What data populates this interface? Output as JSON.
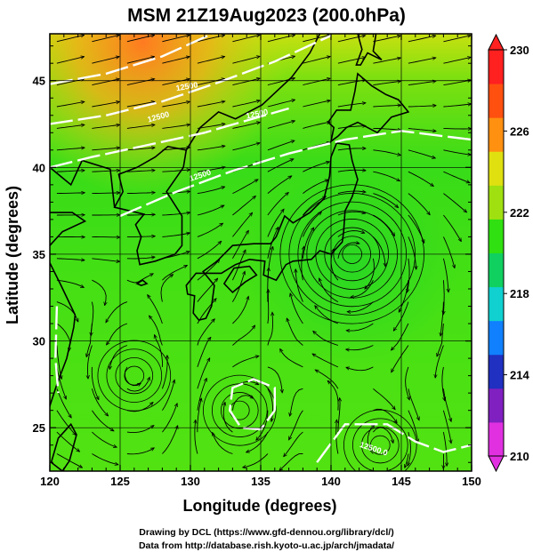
{
  "title": "MSM 21Z19Aug2023 (200.0hPa)",
  "xlabel": "Longitude (degrees)",
  "ylabel": "Latitude  (degrees)",
  "x_ticks": [
    "120",
    "125",
    "130",
    "135",
    "140",
    "145",
    "150"
  ],
  "y_ticks": [
    "25",
    "30",
    "35",
    "40",
    "45"
  ],
  "colorbar": {
    "min": 210,
    "max": 230,
    "tick_labels": [
      "230",
      "226",
      "222",
      "218",
      "214",
      "210"
    ],
    "colors": [
      "#e030e0",
      "#8020c0",
      "#2030c0",
      "#1080ff",
      "#10d0d0",
      "#10d060",
      "#30e010",
      "#a0e010",
      "#e0e010",
      "#ff9010",
      "#ff5010",
      "#ff2020"
    ]
  },
  "contour_labels": [
    "12500",
    "12500",
    "12500",
    "12500.0",
    "12500"
  ],
  "credit_line1": "Drawing by DCL (https://www.gfd-dennou.org/library/dcl/)",
  "credit_line2": "Data from http://database.rish.kyoto-u.ac.jp/arch/jmadata/",
  "map_extent": {
    "lon": [
      120,
      150
    ],
    "lat": [
      22.5,
      47.7
    ]
  },
  "vortices": [
    {
      "name": "anticyclone-japan-sea-east",
      "lon": 141.5,
      "lat": 35.0
    },
    {
      "name": "anticyclone-south",
      "lon": 133.5,
      "lat": 26.0
    },
    {
      "name": "anticyclone-southeast",
      "lon": 143.5,
      "lat": 24.0
    },
    {
      "name": "eddy-west",
      "lon": 126.0,
      "lat": 28.0
    }
  ]
}
